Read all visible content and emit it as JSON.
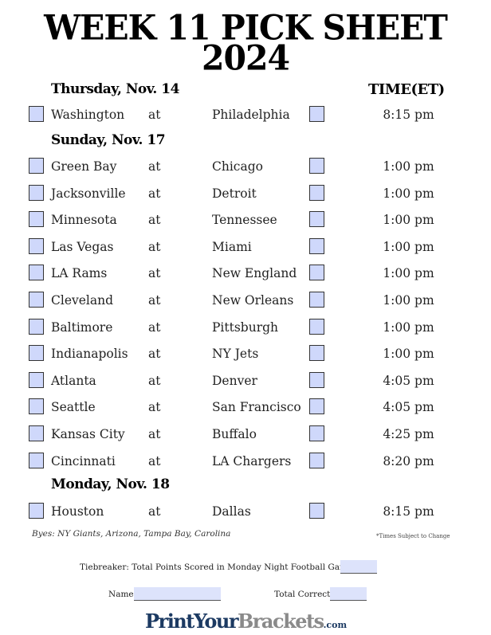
{
  "title_line1": "WEEK 11 PICK SHEET",
  "title_line2": "2024",
  "time_header": "TIME(ET)",
  "days": [
    {
      "label": "Thursday, Nov. 14",
      "games": [
        {
          "away": "Washington",
          "home": "Philadelphia",
          "time": "8:15 pm"
        }
      ]
    },
    {
      "label": "Sunday, Nov. 17",
      "games": [
        {
          "away": "Green Bay",
          "home": "Chicago",
          "time": "1:00 pm"
        },
        {
          "away": "Jacksonville",
          "home": "Detroit",
          "time": "1:00 pm"
        },
        {
          "away": "Minnesota",
          "home": "Tennessee",
          "time": "1:00 pm"
        },
        {
          "away": "Las Vegas",
          "home": "Miami",
          "time": "1:00 pm"
        },
        {
          "away": "LA Rams",
          "home": "New England",
          "time": "1:00 pm"
        },
        {
          "away": "Cleveland",
          "home": "New Orleans",
          "time": "1:00 pm"
        },
        {
          "away": "Baltimore",
          "home": "Pittsburgh",
          "time": "1:00 pm"
        },
        {
          "away": "Indianapolis",
          "home": "NY Jets",
          "time": "1:00 pm"
        },
        {
          "away": "Atlanta",
          "home": "Denver",
          "time": "4:05 pm"
        },
        {
          "away": "Seattle",
          "home": "San Francisco",
          "time": "4:05 pm"
        },
        {
          "away": "Kansas City",
          "home": "Buffalo",
          "time": "4:25 pm"
        },
        {
          "away": "Cincinnati",
          "home": "LA Chargers",
          "time": "8:20 pm"
        }
      ]
    },
    {
      "label": "Monday, Nov. 18",
      "games": [
        {
          "away": "Houston",
          "home": "Dallas",
          "time": "8:15 pm"
        }
      ]
    }
  ],
  "at_label": "at",
  "byes": "Byes: NY Giants, Arizona, Tampa Bay, Carolina",
  "times_note": "*Times Subject to Change",
  "tiebreaker_label": "Tiebreaker: Total Points Scored in Monday Night Football Game",
  "name_label": "Name",
  "total_correct_label": "Total Correct",
  "logo": {
    "part1": "PrintYour",
    "part2": "Brackets",
    "part3": ".com"
  },
  "colors": {
    "checkbox": "#cfd8fb",
    "logo_dark": "#1c3a62",
    "logo_gray": "#8a8a8a"
  }
}
